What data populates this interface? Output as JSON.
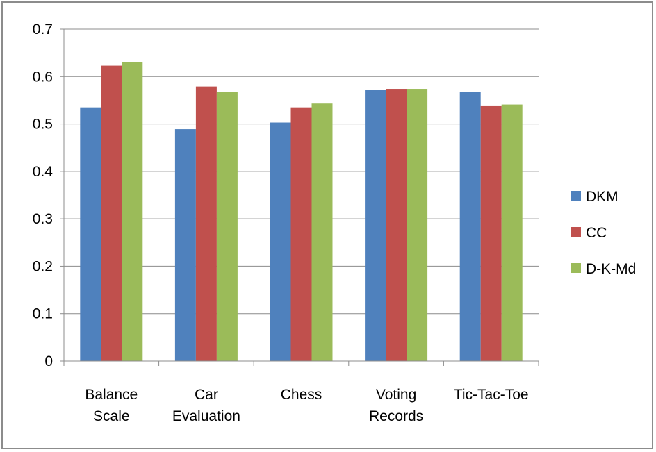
{
  "chart_data": {
    "type": "bar",
    "title": "",
    "xlabel": "",
    "ylabel": "",
    "categories": [
      [
        "Balance",
        "Scale"
      ],
      [
        "Car",
        "Evaluation"
      ],
      [
        "Chess"
      ],
      [
        "Voting",
        "Records"
      ],
      [
        "Tic-Tac-Toe"
      ]
    ],
    "series": [
      {
        "name": "DKM",
        "color": "#4f81bd",
        "values": [
          0.535,
          0.489,
          0.503,
          0.572,
          0.568
        ]
      },
      {
        "name": "CC",
        "color": "#c0504d",
        "values": [
          0.623,
          0.579,
          0.535,
          0.574,
          0.539
        ]
      },
      {
        "name": "D-K-Md",
        "color": "#9bbb59",
        "values": [
          0.631,
          0.568,
          0.543,
          0.574,
          0.541
        ]
      }
    ],
    "ylim": [
      0,
      0.7
    ],
    "yticks": [
      "0",
      "0.1",
      "0.2",
      "0.3",
      "0.4",
      "0.5",
      "0.6",
      "0.7"
    ],
    "grid": true,
    "legend_position": "right"
  }
}
